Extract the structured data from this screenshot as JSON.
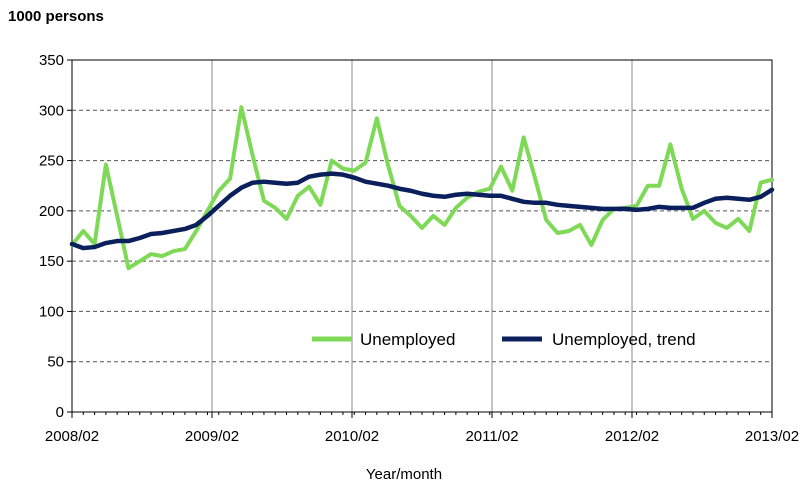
{
  "chart_data": {
    "type": "line",
    "title": "",
    "unit_label": "1000 persons",
    "xlabel": "Year/month",
    "ylabel": "",
    "ylim": [
      0,
      350
    ],
    "yticks": [
      0,
      50,
      100,
      150,
      200,
      250,
      300,
      350
    ],
    "x_tick_labels": [
      "2008/02",
      "2009/02",
      "2010/02",
      "2011/02",
      "2012/02",
      "2013/02"
    ],
    "x_start": "2008/02",
    "x_end": "2013/02",
    "grid": "horizontal dashed, vertical solid at year ticks",
    "legend_position": "bottom-right inside plot",
    "series": [
      {
        "name": "Unemployed",
        "color": "#7ED957",
        "values": [
          166,
          180,
          167,
          246,
          195,
          143,
          150,
          157,
          155,
          160,
          162,
          180,
          200,
          220,
          232,
          303,
          255,
          210,
          203,
          192,
          215,
          224,
          206,
          250,
          242,
          240,
          248,
          292,
          245,
          205,
          195,
          183,
          195,
          186,
          203,
          213,
          219,
          222,
          244,
          220,
          273,
          233,
          191,
          178,
          180,
          186,
          166,
          191,
          202,
          203,
          205,
          225,
          225,
          266,
          222,
          192,
          200,
          188,
          183,
          192,
          180,
          228,
          231
        ]
      },
      {
        "name": "Unemployed, trend",
        "color": "#0B1F5C",
        "values": [
          167,
          163,
          164,
          168,
          170,
          170,
          173,
          177,
          178,
          180,
          182,
          186,
          195,
          205,
          215,
          223,
          228,
          229,
          228,
          227,
          228,
          234,
          236,
          237,
          236,
          233,
          229,
          227,
          225,
          222,
          220,
          217,
          215,
          214,
          216,
          217,
          216,
          215,
          215,
          212,
          209,
          208,
          208,
          206,
          205,
          204,
          203,
          202,
          202,
          202,
          201,
          202,
          204,
          203,
          203,
          203,
          208,
          212,
          213,
          212,
          211,
          214,
          221
        ]
      }
    ]
  }
}
